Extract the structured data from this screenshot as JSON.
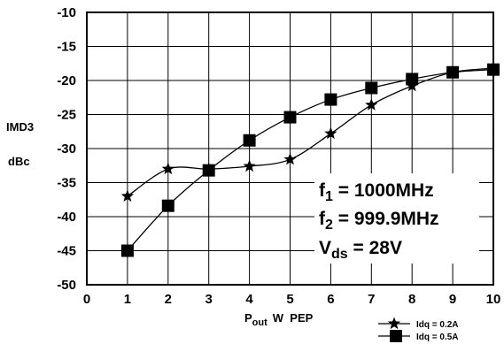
{
  "chart_data": {
    "type": "line",
    "x": [
      1,
      2,
      3,
      4,
      5,
      6,
      7,
      8,
      9,
      10
    ],
    "series": [
      {
        "name": "Idq = 0.2A",
        "marker": "star",
        "values": [
          -37.0,
          -33.0,
          -33.0,
          -32.6,
          -31.6,
          -27.8,
          -23.6,
          -20.8,
          -18.8,
          -18.2
        ]
      },
      {
        "name": "Idq = 0.5A",
        "marker": "square",
        "values": [
          -45.0,
          -38.4,
          -33.2,
          -28.8,
          -25.4,
          -22.8,
          -21.1,
          -19.8,
          -18.8,
          -18.4
        ]
      }
    ],
    "xlim": [
      0,
      10
    ],
    "ylim": [
      -50,
      -10
    ],
    "xticks": [
      0,
      1,
      2,
      3,
      4,
      5,
      6,
      7,
      8,
      9,
      10
    ],
    "yticks": [
      -50,
      -45,
      -40,
      -35,
      -30,
      -25,
      -20,
      -15,
      -10
    ],
    "ylabel_line1": "IMD3",
    "ylabel_line2": "dBc",
    "xlabel": {
      "main": "P",
      "sub": "out",
      "rest": "W  PEP"
    },
    "grid": true,
    "legend_position": "bottom-right",
    "annotations": [
      {
        "main": "f",
        "sub": "1",
        "rest": " = 1000MHz"
      },
      {
        "main": "f",
        "sub": "2",
        "rest": " = 999.9MHz"
      },
      {
        "main": "V",
        "sub": "ds",
        "rest": " = 28V"
      }
    ],
    "colors": {
      "line": "#000000",
      "grid": "#000000",
      "background": "#ffffff"
    }
  }
}
